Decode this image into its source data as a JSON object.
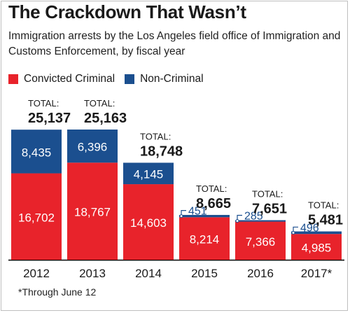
{
  "title": "The Crackdown That Wasn’t",
  "subtitle": "Immigration arrests by the Los Angeles field office of Immigration and Customs Enforcement, by fiscal year",
  "footnote": "*Through June 12",
  "total_label": "TOTAL:",
  "colors": {
    "criminal": "#e8232b",
    "noncriminal": "#1b4f8f"
  },
  "chart_data": {
    "type": "bar",
    "stacked": true,
    "title": "The Crackdown That Wasn’t",
    "subtitle": "Immigration arrests by the Los Angeles field office of Immigration and Customs Enforcement, by fiscal year",
    "categories": [
      "2012",
      "2013",
      "2014",
      "2015",
      "2016",
      "2017*"
    ],
    "series": [
      {
        "name": "Convicted Criminal",
        "values": [
          16702,
          18767,
          14603,
          8214,
          7366,
          4985
        ]
      },
      {
        "name": "Non-Criminal",
        "values": [
          8435,
          6396,
          4145,
          451,
          285,
          496
        ]
      }
    ],
    "totals": [
      "25,137",
      "25,163",
      "18,748",
      "8,665",
      "7,651",
      "5,481"
    ],
    "value_labels": {
      "Convicted Criminal": [
        "16,702",
        "18,767",
        "14,603",
        "8,214",
        "7,366",
        "4,985"
      ],
      "Non-Criminal": [
        "8,435",
        "6,396",
        "4,145",
        "451",
        "285",
        "496"
      ]
    },
    "ylim": [
      0,
      25163
    ],
    "grid": false,
    "legend": "top-left"
  }
}
